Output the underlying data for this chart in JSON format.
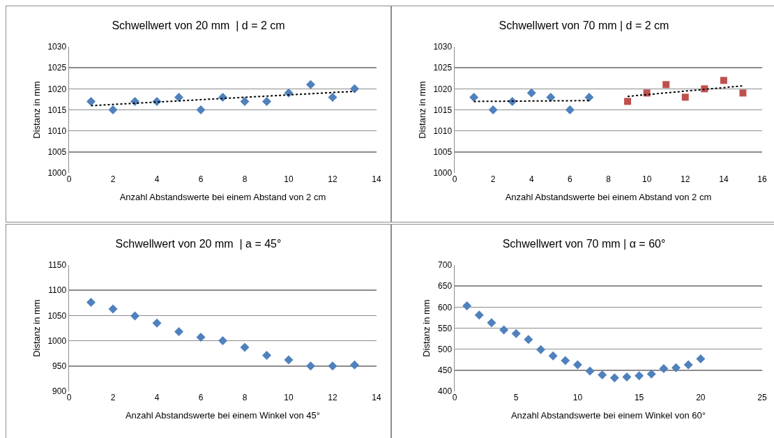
{
  "chart_data": [
    {
      "type": "scatter",
      "title": "Schwellwert von 20 mm  | d = 2 cm",
      "xlabel": "Anzahl Abstandswerte bei einem Abstand von 2 cm",
      "ylabel": "Distanz in mm",
      "xlim": [
        0,
        14
      ],
      "xticks": [
        0,
        2,
        4,
        6,
        8,
        10,
        12,
        14
      ],
      "ylim": [
        1000,
        1030
      ],
      "yticks": [
        1000,
        1005,
        1010,
        1015,
        1020,
        1025,
        1030
      ],
      "grid": "y",
      "marker": "diamond",
      "series": [
        {
          "color": "#4f81bd",
          "x": [
            1,
            2,
            3,
            4,
            5,
            6,
            7,
            8,
            9,
            10,
            11,
            12,
            13
          ],
          "values": [
            1017,
            1015,
            1017,
            1017,
            1018,
            1015,
            1018,
            1017,
            1017,
            1019,
            1021,
            1018,
            1020
          ]
        },
        {
          "type": "line",
          "color": "#000000",
          "marker": "none",
          "line_style": "dotted",
          "x": [
            1,
            13
          ],
          "values": [
            1016,
            1019.4
          ]
        }
      ]
    },
    {
      "type": "scatter",
      "title": "Schwellwert von 70 mm | d = 2 cm",
      "xlabel": "Anzahl Abstandswerte bei einem Abstand von 2 cm",
      "ylabel": "Distanz in mm",
      "xlim": [
        0,
        16
      ],
      "xticks": [
        0,
        2,
        4,
        6,
        8,
        10,
        12,
        14,
        16
      ],
      "ylim": [
        1000,
        1030
      ],
      "yticks": [
        1000,
        1005,
        1010,
        1015,
        1020,
        1025,
        1030
      ],
      "grid": "y",
      "marker": "diamond",
      "series": [
        {
          "color": "#4f81bd",
          "x": [
            1,
            2,
            3,
            4,
            5,
            6,
            7
          ],
          "values": [
            1018,
            1015,
            1017,
            1019,
            1018,
            1015,
            1018
          ]
        },
        {
          "color": "#c0504d",
          "marker": "square",
          "x": [
            9,
            10,
            11,
            12,
            13,
            14,
            15
          ],
          "values": [
            1017,
            1019,
            1021,
            1018,
            1020,
            1022,
            1019
          ]
        },
        {
          "type": "line",
          "color": "#000000",
          "marker": "none",
          "line_style": "dotted",
          "x": [
            1,
            7
          ],
          "values": [
            1017,
            1017.2
          ]
        },
        {
          "type": "line",
          "color": "#000000",
          "marker": "none",
          "line_style": "dotted",
          "x": [
            9,
            15
          ],
          "values": [
            1018.2,
            1020.7
          ]
        }
      ]
    },
    {
      "type": "scatter",
      "title": "Schwellwert von 20 mm  | a = 45°",
      "xlabel": "Anzahl Abstandswerte bei einem Winkel von 45°",
      "ylabel": "Distanz in mm",
      "xlim": [
        0,
        14
      ],
      "xticks": [
        0,
        2,
        4,
        6,
        8,
        10,
        12,
        14
      ],
      "ylim": [
        900,
        1150
      ],
      "yticks": [
        900,
        950,
        1000,
        1050,
        1100,
        1150
      ],
      "grid": "y",
      "marker": "diamond",
      "series": [
        {
          "color": "#4f81bd",
          "x": [
            1,
            2,
            3,
            4,
            5,
            6,
            7,
            8,
            9,
            10,
            11,
            12,
            13
          ],
          "values": [
            1076,
            1063,
            1049,
            1035,
            1018,
            1007,
            1000,
            987,
            971,
            962,
            950,
            950,
            952
          ]
        }
      ]
    },
    {
      "type": "scatter",
      "title": "Schwellwert von 70 mm | α = 60°",
      "xlabel": "Anzahl Abstandswerte bei einem Winkel von 60°",
      "ylabel": "Distanz in mm",
      "xlim": [
        0,
        25
      ],
      "xticks": [
        0,
        5,
        10,
        15,
        20,
        25
      ],
      "ylim": [
        400,
        700
      ],
      "yticks": [
        400,
        450,
        500,
        550,
        600,
        650,
        700
      ],
      "grid": "y",
      "marker": "diamond",
      "series": [
        {
          "color": "#4f81bd",
          "x": [
            1,
            2,
            3,
            4,
            5,
            6,
            7,
            8,
            9,
            10,
            11,
            12,
            13,
            14,
            15,
            16,
            17,
            18,
            19,
            20
          ],
          "values": [
            603,
            581,
            563,
            546,
            537,
            523,
            499,
            484,
            473,
            463,
            448,
            439,
            432,
            434,
            437,
            441,
            454,
            456,
            463,
            477
          ]
        }
      ]
    }
  ]
}
